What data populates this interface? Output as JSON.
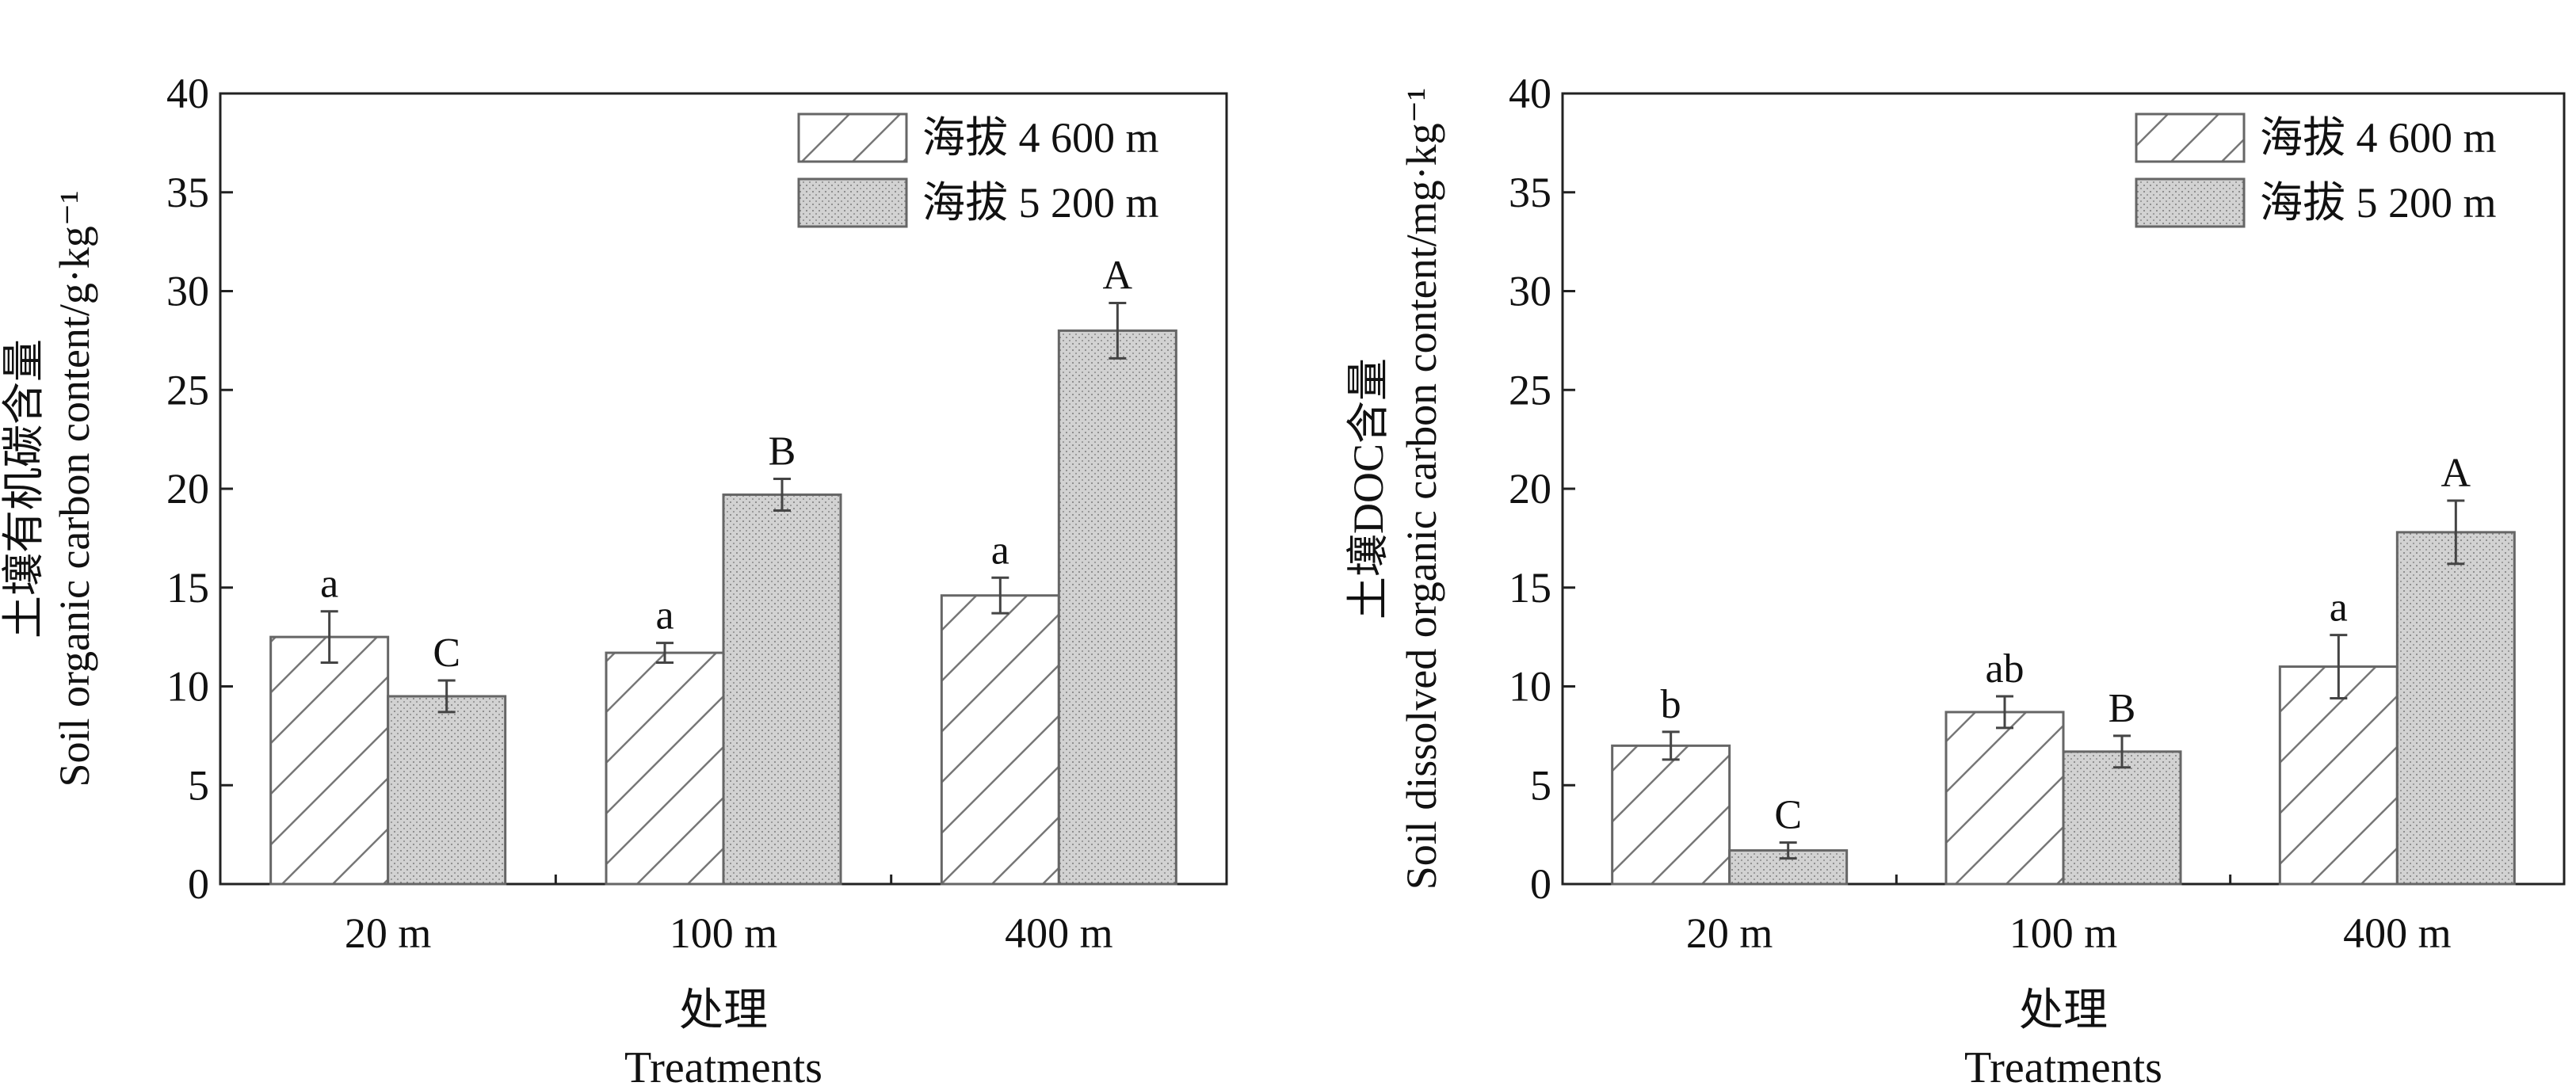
{
  "chart_data": [
    {
      "type": "bar",
      "title": "",
      "xlabel": [
        "处理",
        "Treatments"
      ],
      "ylabel": [
        "土壤有机碳含量",
        "Soil organic carbon content/g·kg⁻¹"
      ],
      "ylim": [
        0,
        40
      ],
      "yticks": [
        0,
        5,
        10,
        15,
        20,
        25,
        30,
        35,
        40
      ],
      "categories": [
        "20 m",
        "100 m",
        "400 m"
      ],
      "series": [
        {
          "name": "海拔 4 600 m",
          "pattern": "hatch",
          "values": [
            12.5,
            11.7,
            14.6
          ],
          "errors": [
            1.3,
            0.5,
            0.9
          ],
          "letters": [
            "a",
            "a",
            "a"
          ]
        },
        {
          "name": "海拔 5 200 m",
          "pattern": "dots",
          "values": [
            9.5,
            19.7,
            28.0
          ],
          "errors": [
            0.8,
            0.8,
            1.4
          ],
          "letters": [
            "C",
            "B",
            "A"
          ]
        }
      ],
      "legend": "top-right",
      "grid": false
    },
    {
      "type": "bar",
      "title": "",
      "xlabel": [
        "处理",
        "Treatments"
      ],
      "ylabel": [
        "土壤DOC含量",
        "Soil dissolved organic carbon content/mg·kg⁻¹"
      ],
      "ylim": [
        0,
        40
      ],
      "yticks": [
        0,
        5,
        10,
        15,
        20,
        25,
        30,
        35,
        40
      ],
      "categories": [
        "20 m",
        "100 m",
        "400 m"
      ],
      "series": [
        {
          "name": "海拔 4 600 m",
          "pattern": "hatch",
          "values": [
            7.0,
            8.7,
            11.0
          ],
          "errors": [
            0.7,
            0.8,
            1.6
          ],
          "letters": [
            "b",
            "ab",
            "a"
          ]
        },
        {
          "name": "海拔 5 200 m",
          "pattern": "dots",
          "values": [
            1.7,
            6.7,
            17.8
          ],
          "errors": [
            0.4,
            0.8,
            1.6
          ],
          "letters": [
            "C",
            "B",
            "A"
          ]
        }
      ],
      "legend": "top-right",
      "grid": false
    }
  ],
  "colors": {
    "axis": "#222222",
    "bar_fill_dotted": "#cfcfcf",
    "bar_fill_hatched": "#ffffff"
  }
}
